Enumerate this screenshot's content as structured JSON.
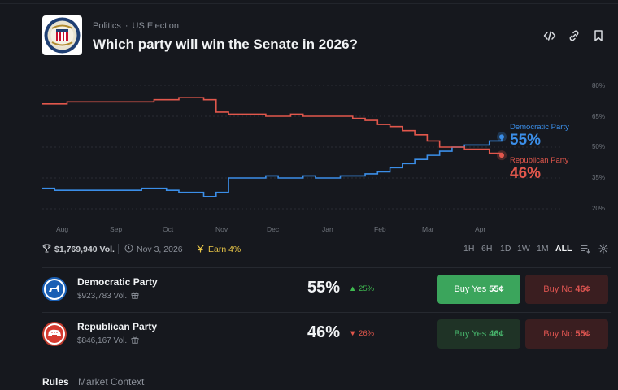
{
  "header": {
    "breadcrumb": [
      "Politics",
      "US Election"
    ],
    "title": "Which party will win the Senate in 2026?",
    "icons": [
      "embed-icon",
      "link-icon",
      "bookmark-icon"
    ]
  },
  "chart_data": {
    "type": "line",
    "y_ticks": [
      "80%",
      "65%",
      "50%",
      "35%",
      "20%"
    ],
    "ylim": [
      20,
      80
    ],
    "x_ticks": [
      "Aug",
      "Sep",
      "Oct",
      "Nov",
      "Dec",
      "Jan",
      "Feb",
      "Mar",
      "Apr"
    ],
    "grid": true,
    "series": [
      {
        "name": "Democratic Party",
        "current": "55%",
        "color": "#3b8ee8",
        "values": [
          30,
          29,
          29,
          29,
          29,
          29,
          29,
          29,
          30,
          30,
          29,
          28,
          28,
          26,
          28,
          35,
          35,
          35,
          36,
          35,
          35,
          36,
          35,
          35,
          36,
          36,
          37,
          38,
          40,
          42,
          44,
          46,
          48,
          50,
          51,
          51,
          53,
          55
        ]
      },
      {
        "name": "Republican Party",
        "current": "46%",
        "color": "#e2574c",
        "values": [
          71,
          71,
          72,
          72,
          72,
          72,
          72,
          72,
          72,
          73,
          73,
          74,
          74,
          73,
          67,
          66,
          66,
          66,
          65,
          65,
          66,
          65,
          65,
          65,
          65,
          64,
          63,
          61,
          60,
          58,
          56,
          53,
          50,
          50,
          49,
          49,
          47,
          46
        ]
      }
    ]
  },
  "stats": {
    "volume": "$1,769,940 Vol.",
    "end_date": "Nov 3, 2026",
    "earn": "Earn 4%",
    "timeframes": [
      "1H",
      "6H",
      "1D",
      "1W",
      "1M",
      "ALL"
    ],
    "active_timeframe": "ALL"
  },
  "outcomes": [
    {
      "name": "Democratic Party",
      "volume": "$923,783 Vol.",
      "probability": "55%",
      "change": "25%",
      "change_dir": "up",
      "yes_label": "Buy Yes",
      "yes_price": "55¢",
      "no_label": "Buy No",
      "no_price": "46¢"
    },
    {
      "name": "Republican Party",
      "volume": "$846,167 Vol.",
      "probability": "46%",
      "change": "26%",
      "change_dir": "down",
      "yes_label": "Buy Yes",
      "yes_price": "46¢",
      "no_label": "Buy No",
      "no_price": "55¢"
    }
  ],
  "tabs": [
    "Rules",
    "Market Context"
  ],
  "active_tab": "Rules"
}
